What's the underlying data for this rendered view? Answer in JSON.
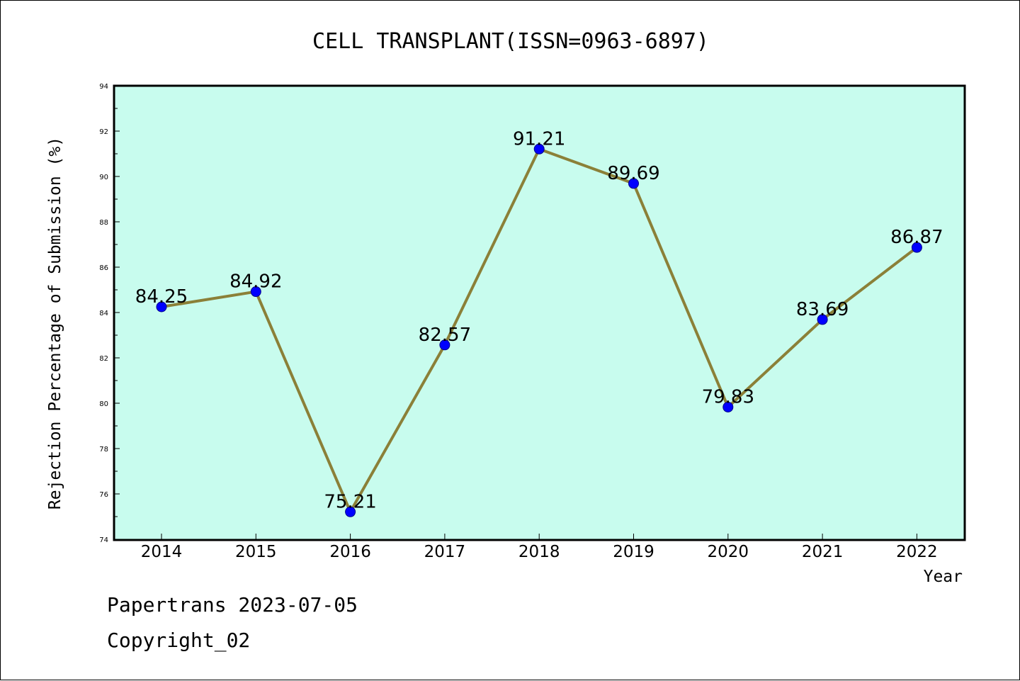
{
  "colors": {
    "plot_background": "#c8fcee",
    "line": "#8b8038",
    "marker": "#0000ff"
  },
  "chart_data": {
    "type": "line",
    "title": "CELL TRANSPLANT(ISSN=0963-6897)",
    "xlabel": "Year",
    "ylabel": "Rejection Percentage of Submission (%)",
    "categories": [
      "2014",
      "2015",
      "2016",
      "2017",
      "2018",
      "2019",
      "2020",
      "2021",
      "2022"
    ],
    "values": [
      84.25,
      84.92,
      75.21,
      82.57,
      91.21,
      89.69,
      79.83,
      83.69,
      86.87
    ],
    "data_labels": [
      "84.25",
      "84.92",
      "75.21",
      "82.57",
      "91.21",
      "89.69",
      "79.83",
      "83.69",
      "86.87"
    ],
    "ylim": [
      74,
      94
    ],
    "yticks": [
      "74",
      "76",
      "78",
      "80",
      "82",
      "84",
      "86",
      "88",
      "90",
      "92",
      "94"
    ],
    "grid": false,
    "legend": "none"
  },
  "footer": {
    "date_text": "Papertrans 2023-07-05",
    "copyright_text": "Copyright_02"
  }
}
